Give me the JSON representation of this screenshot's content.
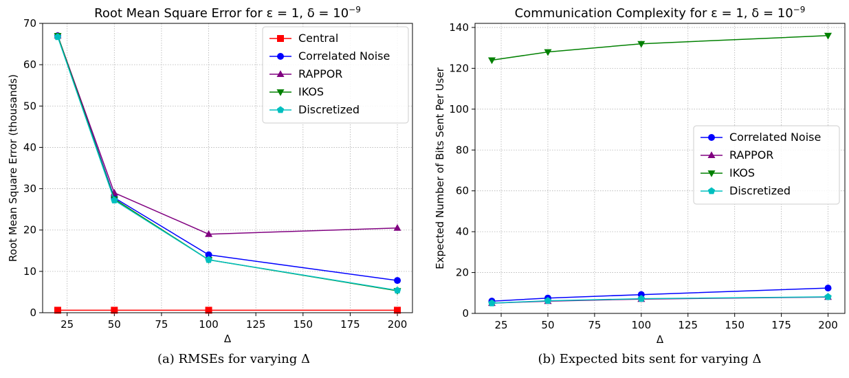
{
  "chart_data": [
    {
      "type": "line",
      "title": "Root Mean Square Error for ε = 1, δ = 10",
      "title_sup": "−9",
      "xlabel": "Δ",
      "ylabel": "Root Mean Square Error (thousands)",
      "xlim": [
        12,
        208
      ],
      "ylim": [
        0,
        70
      ],
      "xticks": [
        25,
        50,
        75,
        100,
        125,
        150,
        175,
        200
      ],
      "yticks": [
        0,
        10,
        20,
        30,
        40,
        50,
        60,
        70
      ],
      "grid": true,
      "legend_position": "top-right",
      "x": [
        20,
        50,
        100,
        200
      ],
      "series": [
        {
          "name": "Central",
          "color": "#ff0000",
          "marker": "square",
          "values": [
            0.6,
            0.6,
            0.6,
            0.6
          ]
        },
        {
          "name": "Correlated Noise",
          "color": "#0000ff",
          "marker": "circle",
          "values": [
            67.0,
            27.8,
            14.0,
            7.8
          ]
        },
        {
          "name": "RAPPOR",
          "color": "#800080",
          "marker": "triangle-up",
          "values": [
            67.0,
            29.0,
            19.0,
            20.5
          ]
        },
        {
          "name": "IKOS",
          "color": "#008000",
          "marker": "triangle-down",
          "values": [
            67.0,
            27.5,
            12.8,
            5.3
          ]
        },
        {
          "name": "Discretized",
          "color": "#00bfbf",
          "marker": "pentagon",
          "values": [
            66.7,
            27.2,
            12.8,
            5.4
          ]
        }
      ]
    },
    {
      "type": "line",
      "title": "Communication Complexity for ε = 1, δ = 10",
      "title_sup": "−9",
      "xlabel": "Δ",
      "ylabel": "Expected Number of Bits Sent Per User",
      "xlim": [
        11,
        209
      ],
      "ylim": [
        0,
        142
      ],
      "xticks": [
        25,
        50,
        75,
        100,
        125,
        150,
        175,
        200
      ],
      "yticks": [
        0,
        20,
        40,
        60,
        80,
        100,
        120,
        140
      ],
      "grid": true,
      "legend_position": "center-right",
      "x": [
        20,
        50,
        100,
        200
      ],
      "series": [
        {
          "name": "Correlated Noise",
          "color": "#0000ff",
          "marker": "circle",
          "values": [
            6.0,
            7.5,
            9.2,
            12.4
          ]
        },
        {
          "name": "RAPPOR",
          "color": "#800080",
          "marker": "triangle-up",
          "values": [
            5.0,
            6.0,
            7.0,
            8.0
          ]
        },
        {
          "name": "IKOS",
          "color": "#008000",
          "marker": "triangle-down",
          "values": [
            124,
            128,
            132,
            136
          ]
        },
        {
          "name": "Discretized",
          "color": "#00bfbf",
          "marker": "pentagon",
          "values": [
            5.0,
            6.2,
            7.2,
            8.1
          ]
        }
      ]
    }
  ],
  "captions": {
    "a": "(a) RMSEs for varying Δ",
    "b": "(b) Expected bits sent for varying Δ"
  }
}
